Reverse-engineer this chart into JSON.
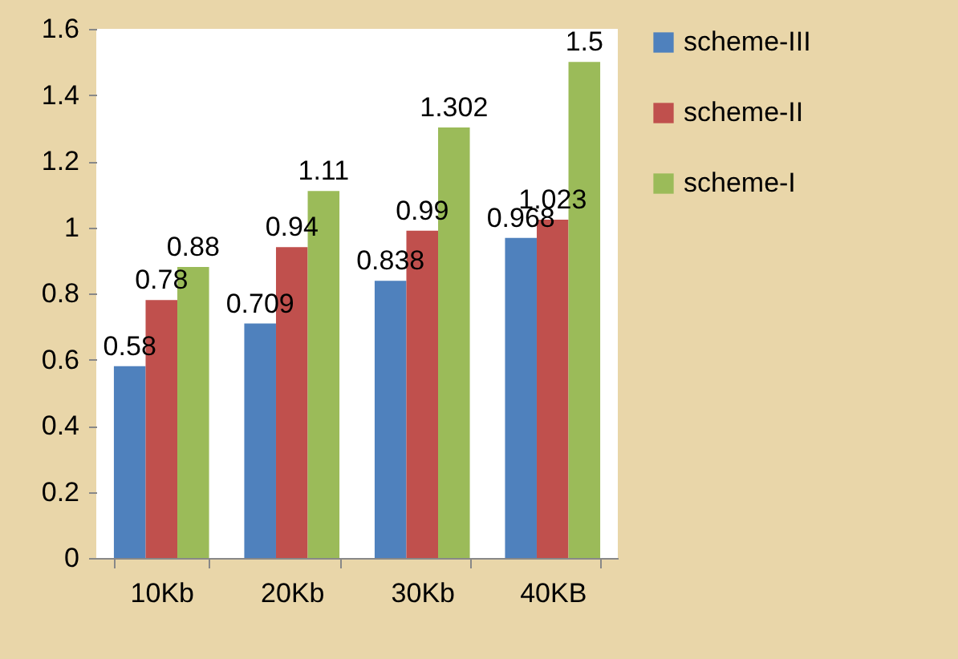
{
  "chart_data": {
    "type": "bar",
    "categories": [
      "10Kb",
      "20Kb",
      "30Kb",
      "40KB"
    ],
    "series": [
      {
        "name": "scheme-III",
        "color": "#4f81bd",
        "values": [
          0.58,
          0.709,
          0.838,
          0.968
        ]
      },
      {
        "name": "scheme-II",
        "color": "#c0504d",
        "values": [
          0.78,
          0.94,
          0.99,
          1.023
        ]
      },
      {
        "name": "scheme-I",
        "color": "#9bbb59",
        "values": [
          0.88,
          1.11,
          1.302,
          1.5
        ]
      }
    ],
    "ylim": [
      0,
      1.6
    ],
    "yticks": [
      0,
      0.2,
      0.4,
      0.6,
      0.8,
      1,
      1.2,
      1.4,
      1.6
    ],
    "grid": false,
    "legend": "right",
    "data_labels": true
  }
}
